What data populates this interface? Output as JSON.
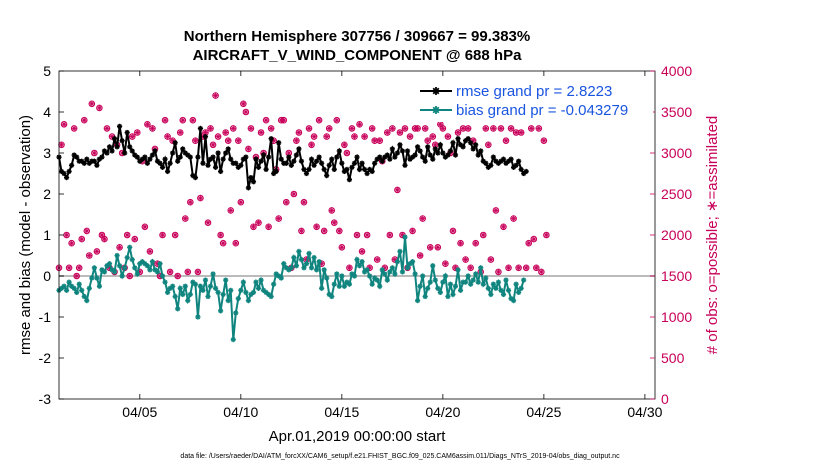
{
  "chart_data": {
    "type": "line",
    "title_line1": "Northern Hemisphere 307756 / 309667 = 99.383%",
    "title_line2": "AIRCRAFT_V_WIND_COMPONENT @ 688 hPa",
    "xlabel": "Apr.01,2019 00:00:00 start",
    "ylabel_left": "rmse and bias (model - observation)",
    "ylabel_right": "# of obs: o=possible; ∗=assimilated",
    "xlim": [
      1,
      30.5
    ],
    "ylim_left": [
      -3,
      5
    ],
    "ylim_right": [
      0,
      4000
    ],
    "x_ticks": [
      5,
      10,
      15,
      20,
      25,
      30
    ],
    "x_tick_labels": [
      "04/05",
      "04/10",
      "04/15",
      "04/20",
      "04/25",
      "04/30"
    ],
    "y_ticks_left": [
      "-3",
      "-2",
      "-1",
      "0",
      "1",
      "2",
      "3",
      "4",
      "5"
    ],
    "y_ticks_right": [
      "0",
      "500",
      "1000",
      "1500",
      "2000",
      "2500",
      "3000",
      "3500",
      "4000"
    ],
    "x_step_days": 0.125,
    "series": [
      {
        "name": "rmse grand pr = 2.8223",
        "color": "#000000",
        "marker": "asterisk",
        "axis": "left",
        "values": [
          2.9,
          2.55,
          2.5,
          2.4,
          2.55,
          2.7,
          2.95,
          2.9,
          2.8,
          2.8,
          2.75,
          2.85,
          2.75,
          2.8,
          2.8,
          2.7,
          2.85,
          2.9,
          3.05,
          3.0,
          3.15,
          3.05,
          3.35,
          3.15,
          3.65,
          3.3,
          3.0,
          3.5,
          3.15,
          3.05,
          2.95,
          2.9,
          2.8,
          2.85,
          2.9,
          2.75,
          2.85,
          2.95,
          3.05,
          2.8,
          2.75,
          2.65,
          2.85,
          2.55,
          2.75,
          3.0,
          3.25,
          2.8,
          2.9,
          3.1,
          3.0,
          2.95,
          2.9,
          2.45,
          2.4,
          2.9,
          3.6,
          2.75,
          3.4,
          2.7,
          2.85,
          2.9,
          2.65,
          3.0,
          2.55,
          2.85,
          3.0,
          3.1,
          2.85,
          2.75,
          2.75,
          2.65,
          2.7,
          2.85,
          2.9,
          2.15,
          2.4,
          2.3,
          2.85,
          2.65,
          2.8,
          2.95,
          2.6,
          2.9,
          3.35,
          2.5,
          2.55,
          3.25,
          2.85,
          2.75,
          2.75,
          2.9,
          2.7,
          2.8,
          2.95,
          3.1,
          2.8,
          2.6,
          2.5,
          2.6,
          2.85,
          2.7,
          2.8,
          2.9,
          2.75,
          2.6,
          2.45,
          2.7,
          2.85,
          2.6,
          2.9,
          3.05,
          2.75,
          2.55,
          2.6,
          2.35,
          2.65,
          2.75,
          2.9,
          2.6,
          2.75,
          2.6,
          2.5,
          2.6,
          2.55,
          2.75,
          2.85,
          2.9,
          2.8,
          2.9,
          2.95,
          2.85,
          3.1,
          2.9,
          3.0,
          3.2,
          3.05,
          2.7,
          3.05,
          2.85,
          2.9,
          2.95,
          3.15,
          3.05,
          2.9,
          2.8,
          3.15,
          2.95,
          2.85,
          3.1,
          3.0,
          3.2,
          3.0,
          2.9,
          2.95,
          3.05,
          3.25,
          2.95,
          3.35,
          3.2,
          3.15,
          3.3,
          3.35,
          3.25,
          3.1,
          3.2,
          2.95,
          3.05,
          2.8,
          2.75,
          2.65,
          2.7,
          2.9,
          2.8,
          2.75,
          2.8,
          2.85,
          2.75,
          2.8,
          2.85,
          2.65,
          2.7,
          2.8,
          2.6,
          2.5,
          2.55
        ]
      },
      {
        "name": "bias grand pr = -0.043279",
        "color": "#10857f",
        "marker": "asterisk",
        "axis": "left",
        "values": [
          -0.35,
          -0.3,
          -0.25,
          -0.35,
          -0.15,
          -0.25,
          -0.3,
          -0.4,
          -0.2,
          -0.35,
          -0.5,
          -0.6,
          -0.3,
          -0.05,
          0.2,
          -0.05,
          -0.25,
          0.15,
          0.1,
          0.25,
          0.3,
          0.15,
          0.1,
          0.5,
          0.25,
          0.0,
          0.2,
          0.45,
          0.7,
          0.4,
          0.2,
          0.05,
          0.3,
          0.35,
          0.3,
          0.25,
          0.15,
          0.35,
          0.15,
          0.1,
          0.3,
          0.0,
          -0.15,
          -0.4,
          -0.3,
          -0.25,
          -0.5,
          -0.8,
          -0.3,
          -0.45,
          -0.25,
          -0.6,
          -0.45,
          -0.15,
          -0.2,
          -1.0,
          -0.25,
          -0.35,
          -0.1,
          -0.5,
          -0.25,
          0.05,
          -0.3,
          -0.4,
          -0.85,
          -0.45,
          -0.1,
          -0.6,
          -0.35,
          -1.55,
          -0.9,
          -0.55,
          -0.35,
          -0.15,
          -0.4,
          -0.6,
          -0.45,
          -0.4,
          -0.15,
          -0.3,
          -0.1,
          -0.35,
          -0.4,
          -0.45,
          -0.5,
          -0.2,
          0.05,
          0.0,
          -0.05,
          0.3,
          0.2,
          0.15,
          0.2,
          0.45,
          0.25,
          0.6,
          0.4,
          0.2,
          0.3,
          0.55,
          0.2,
          0.45,
          0.15,
          0.35,
          -0.3,
          0.15,
          -0.05,
          -0.45,
          -0.5,
          -0.2,
          0.05,
          -0.25,
          0.0,
          -0.25,
          -0.15,
          -0.2,
          0.05,
          0.0,
          0.4,
          0.25,
          0.35,
          0.1,
          0.15,
          0.0,
          -0.2,
          -0.05,
          -0.1,
          -0.25,
          0.15,
          0.05,
          -0.1,
          0.1,
          0.2,
          0.05,
          0.35,
          0.6,
          0.1,
          0.95,
          0.2,
          0.3,
          0.35,
          0.05,
          -0.6,
          -0.25,
          0.0,
          -0.5,
          -0.3,
          -0.15,
          0.25,
          -0.1,
          -0.3,
          -0.4,
          -0.15,
          0.0,
          -0.5,
          -0.2,
          -0.45,
          -0.25,
          0.15,
          -0.35,
          -0.15,
          -0.15,
          0.0,
          -0.2,
          -0.1,
          0.05,
          -0.15,
          0.2,
          -0.2,
          -0.05,
          -0.3,
          -0.45,
          -0.2,
          -0.3,
          -0.15,
          -0.35,
          -0.45,
          -0.1,
          -0.35,
          -0.55,
          -0.6,
          -0.2,
          -0.4,
          -0.3,
          -0.1
        ]
      },
      {
        "name": "# of obs possible",
        "color": "#c8005a",
        "marker": "circle",
        "axis": "right",
        "values": [
          1600,
          3100,
          3350,
          2000,
          1600,
          1900,
          3300,
          1500,
          1600,
          1950,
          3400,
          2050,
          1750,
          3600,
          3000,
          1800,
          3550,
          2000,
          1950,
          3300,
          1600,
          3200,
          1550,
          3100,
          1850,
          3000,
          1600,
          2000,
          1500,
          3200,
          1950,
          3250,
          1550,
          2900,
          2100,
          3350,
          1800,
          3300,
          3050,
          1650,
          1500,
          2000,
          3400,
          3200,
          1550,
          3150,
          2000,
          1500,
          3250,
          3400,
          2200,
          1550,
          2400,
          3400,
          3150,
          1550,
          2450,
          3200,
          3250,
          2150,
          3300,
          3100,
          3700,
          3200,
          2000,
          1900,
          3250,
          3150,
          2300,
          3300,
          1900,
          3150,
          2400,
          3600,
          3500,
          3050,
          3300,
          2100,
          2950,
          2150,
          3250,
          3000,
          3400,
          2100,
          3300,
          3150,
          2800,
          2200,
          3400,
          3400,
          2400,
          3000,
          1600,
          2500,
          3150,
          3250,
          2050,
          2400,
          1700,
          3300,
          3100,
          3200,
          2100,
          3400,
          1650,
          2050,
          3200,
          3300,
          2300,
          2150,
          3400,
          2050,
          1850,
          3100,
          3000,
          1600,
          3300,
          3200,
          2000,
          3350,
          1800,
          3200,
          2000,
          1600,
          3300,
          3150,
          1700,
          3150,
          2900,
          1600,
          3250,
          2000,
          3300,
          1700,
          2550,
          3250,
          2000,
          3300,
          1600,
          3200,
          2050,
          3300,
          3300,
          1750,
          2200,
          3300,
          3150,
          1850,
          3200,
          3100,
          1850,
          3350,
          3300,
          1650,
          3200,
          3000,
          2050,
          1600,
          3250,
          1900,
          3300,
          1700,
          3300,
          1600,
          3150,
          1900,
          3450,
          1550,
          2000,
          3300,
          3100,
          1700,
          3300,
          2300,
          1550,
          3300,
          2100,
          3150,
          1600,
          3300,
          2200,
          3250,
          1600,
          3250,
          3500,
          1600,
          1900,
          3300,
          1950,
          1600,
          3300,
          1550,
          3150,
          2000
        ]
      },
      {
        "name": "# of obs assimilated",
        "color": "#c8005a",
        "marker": "asterisk",
        "axis": "right",
        "values": [
          1600,
          3100,
          3350,
          2000,
          1600,
          1900,
          3300,
          1500,
          1600,
          1950,
          3400,
          2050,
          1750,
          3600,
          3000,
          1800,
          3550,
          2000,
          1950,
          3300,
          1600,
          3200,
          1550,
          3100,
          1850,
          3000,
          1600,
          2000,
          1500,
          3200,
          1950,
          3250,
          1550,
          2900,
          2100,
          3350,
          1800,
          3300,
          3050,
          1650,
          1500,
          2000,
          3400,
          3200,
          1550,
          3150,
          2000,
          1500,
          3250,
          3400,
          2200,
          1550,
          2400,
          3400,
          3150,
          1550,
          2450,
          3200,
          3250,
          2150,
          3300,
          3100,
          3700,
          3200,
          2000,
          1900,
          3250,
          3150,
          2300,
          3300,
          1900,
          3150,
          2400,
          3600,
          3500,
          3050,
          3300,
          2100,
          2950,
          2150,
          3250,
          3000,
          3400,
          2100,
          3300,
          3150,
          2800,
          2200,
          3400,
          3400,
          2400,
          3000,
          1600,
          2500,
          3150,
          3250,
          2050,
          2400,
          1700,
          3300,
          3100,
          3200,
          2100,
          3400,
          1650,
          2050,
          3200,
          3300,
          2300,
          2150,
          3400,
          2050,
          1850,
          3100,
          3000,
          1600,
          3300,
          3200,
          2000,
          3350,
          1800,
          3200,
          2000,
          1600,
          3300,
          3150,
          1700,
          3150,
          2900,
          1600,
          3250,
          2000,
          3300,
          1700,
          2550,
          3250,
          2000,
          3300,
          1600,
          3200,
          2050,
          3300,
          3300,
          1750,
          2200,
          3300,
          3150,
          1850,
          3200,
          3100,
          1850,
          3350,
          3300,
          1650,
          3200,
          3000,
          2050,
          1600,
          3250,
          1900,
          3300,
          1700,
          3300,
          1600,
          3150,
          1900,
          3450,
          1550,
          2000,
          3300,
          3100,
          1700,
          3300,
          2300,
          1550,
          3300,
          2100,
          3150,
          1600,
          3300,
          2200,
          3250,
          1600,
          3250,
          3500,
          1600,
          1900,
          3300,
          1950,
          1600,
          3300,
          1550,
          3150,
          2000
        ]
      }
    ],
    "legend_location": "top-right",
    "footnote": "data file: /Users/raeder/DAI/ATM_forcXX/CAM6_setup/f.e21.FHIST_BGC.f09_025.CAM6assim.011/Diags_NTrS_2019-04/obs_diag_output.nc"
  }
}
